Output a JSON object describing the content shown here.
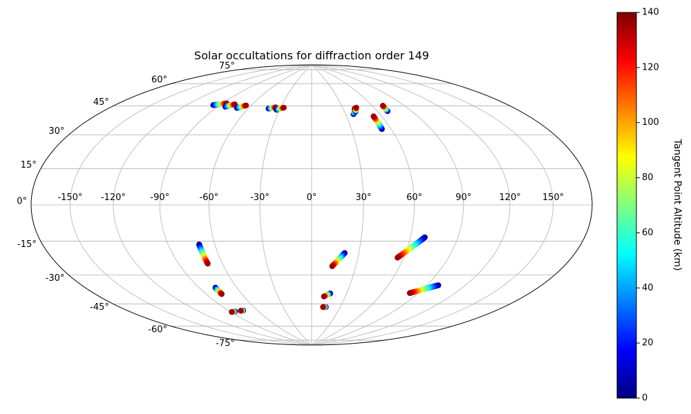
{
  "chart_data": {
    "type": "scatter",
    "projection": "hammer",
    "title": "Solar occultations for diffraction order 149",
    "longitude_ticks": [
      "-150°",
      "-120°",
      "-90°",
      "-60°",
      "-30°",
      "0°",
      "30°",
      "60°",
      "90°",
      "120°",
      "150°"
    ],
    "latitude_ticks": [
      "75°",
      "60°",
      "45°",
      "30°",
      "15°",
      "0°",
      "-15°",
      "-30°",
      "-45°",
      "-60°",
      "-75°"
    ],
    "grid": true,
    "colorbar": {
      "label": "Tangent Point Altitude (km)",
      "colormap": "jet",
      "range": [
        0,
        140
      ],
      "ticks": [
        "0",
        "20",
        "40",
        "60",
        "80",
        "100",
        "120",
        "140"
      ],
      "placement": "right"
    },
    "x_unit": "longitude (deg)",
    "y_unit": "latitude (deg)",
    "occultation_tracks": [
      {
        "start": [
          -96,
          56.5
        ],
        "end": [
          -86,
          58.5
        ]
      },
      {
        "start": [
          -83,
          56.5
        ],
        "end": [
          -77,
          58.5
        ]
      },
      {
        "start": [
          -71,
          56.5
        ],
        "end": [
          -65,
          58.5
        ]
      },
      {
        "start": [
          -41,
          57.5
        ],
        "end": [
          -35,
          58.5
        ]
      },
      {
        "start": [
          -33,
          57.0
        ],
        "end": [
          -27,
          58.5
        ]
      },
      {
        "start": [
          37,
          54.0
        ],
        "end": [
          41,
          57.5
        ]
      },
      {
        "start": [
          40,
          55.5
        ],
        "end": [
          43,
          58.0
        ]
      },
      {
        "start": [
          53,
          44.0
        ],
        "end": [
          53,
          52.0
        ]
      },
      {
        "start": [
          69,
          54.5
        ],
        "end": [
          70,
          58.0
        ]
      },
      {
        "start": [
          -70,
          -22
        ],
        "end": [
          -70,
          -33
        ]
      },
      {
        "start": [
          -77,
          -47
        ],
        "end": [
          -77,
          -51
        ]
      },
      {
        "start": [
          -85,
          -62
        ],
        "end": [
          -89,
          -62
        ]
      },
      {
        "start": [
          -75,
          -62
        ],
        "end": [
          -78,
          -62
        ]
      },
      {
        "start": [
          21,
          -28
        ],
        "end": [
          14,
          -36
        ]
      },
      {
        "start": [
          16,
          -53
        ],
        "end": [
          11,
          -55
        ]
      },
      {
        "start": [
          15,
          -62
        ],
        "end": [
          12,
          -62
        ]
      },
      {
        "start": [
          69,
          -18
        ],
        "end": [
          56,
          -30
        ]
      },
      {
        "start": [
          99,
          -44
        ],
        "end": [
          83,
          -50
        ]
      }
    ]
  }
}
